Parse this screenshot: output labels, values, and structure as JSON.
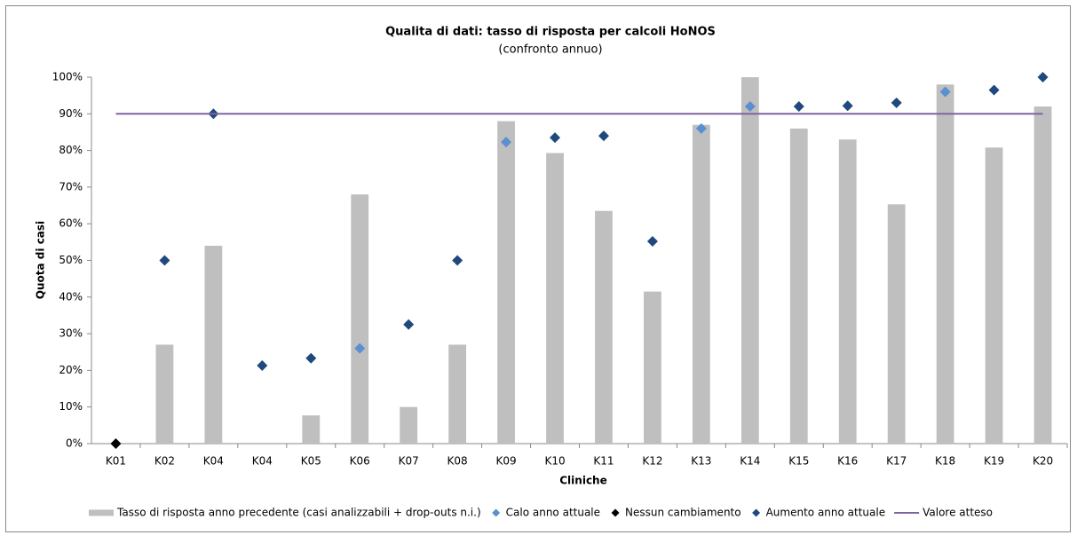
{
  "chart_data": {
    "type": "combo",
    "title": "Qualita di dati: tasso di risposta per calcoli HoNOS",
    "subtitle": "(confronto annuo)",
    "x_label": "Cliniche",
    "y_label": "Quota di casi",
    "categories": [
      "K01",
      "K02",
      "K04",
      "K04",
      "K05",
      "K06",
      "K07",
      "K08",
      "K09",
      "K10",
      "K11",
      "K12",
      "K13",
      "K14",
      "K15",
      "K16",
      "K17",
      "K18",
      "K19",
      "K20"
    ],
    "ylim": [
      0,
      100
    ],
    "yticks": [
      {
        "value": 0,
        "label": "0%"
      },
      {
        "value": 10,
        "label": "10%"
      },
      {
        "value": 20,
        "label": "20%"
      },
      {
        "value": 30,
        "label": "30%"
      },
      {
        "value": 40,
        "label": "40%"
      },
      {
        "value": 50,
        "label": "50%"
      },
      {
        "value": 60,
        "label": "60%"
      },
      {
        "value": 70,
        "label": "70%"
      },
      {
        "value": 80,
        "label": "80%"
      },
      {
        "value": 90,
        "label": "90%"
      },
      {
        "value": 100,
        "label": "100%"
      }
    ],
    "grid": false,
    "legend": "bottom",
    "series": [
      {
        "name": "Tasso di risposta anno precedente (casi analizzabili + drop-outs n.i.)",
        "type": "bar",
        "color": "#bfbfbf",
        "values": [
          null,
          27,
          54,
          null,
          7.7,
          68,
          10,
          27,
          88,
          79.3,
          63.5,
          41.5,
          87,
          100,
          86,
          83,
          65.3,
          98,
          80.8,
          92
        ]
      },
      {
        "name": "Calo anno attuale",
        "type": "scatter",
        "color": "#5b8fd0",
        "values": [
          null,
          null,
          null,
          null,
          null,
          26,
          null,
          null,
          82.3,
          null,
          null,
          null,
          86,
          92,
          null,
          null,
          null,
          96,
          null,
          null
        ]
      },
      {
        "name": "Nessun cambiamento",
        "type": "scatter",
        "color": "#000000",
        "values": [
          0,
          null,
          null,
          null,
          null,
          null,
          null,
          null,
          null,
          null,
          null,
          null,
          null,
          null,
          null,
          null,
          null,
          null,
          null,
          null
        ]
      },
      {
        "name": "Aumento anno attuale",
        "type": "scatter",
        "color": "#1f497d",
        "values": [
          null,
          50,
          90,
          21.3,
          23.3,
          null,
          32.5,
          50,
          null,
          83.5,
          84,
          55.2,
          null,
          null,
          92,
          92.2,
          93,
          null,
          96.5,
          100
        ]
      },
      {
        "name": "Valore atteso",
        "type": "line",
        "color": "#8064a2",
        "values": [
          90,
          90,
          90,
          90,
          90,
          90,
          90,
          90,
          90,
          90,
          90,
          90,
          90,
          90,
          90,
          90,
          90,
          90,
          90,
          90
        ]
      }
    ]
  }
}
